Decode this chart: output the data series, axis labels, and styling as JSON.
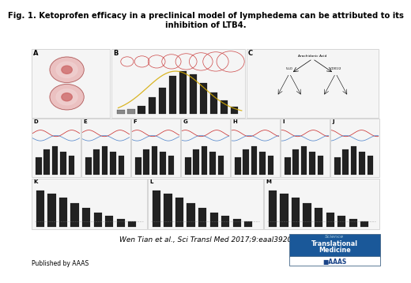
{
  "title_line1": "Fig. 1. Ketoprofen efficacy in a preclinical model of lymphedema can be attributed to its",
  "title_line2": "inhibition of LTB4.",
  "citation": "Wen Tian et al., Sci Transl Med 2017;9:eaal3920",
  "published_by": "Published by AAAS",
  "background_color": "#ffffff",
  "title_fontsize": 7.2,
  "citation_fontsize": 6.5,
  "published_fontsize": 5.5,
  "journal_box_color": "#1a5899",
  "panel_bg": "#f5f5f5",
  "panel_edge": "#bbbbbb",
  "bar_color": "#222222",
  "bar_color_light": "#888888"
}
